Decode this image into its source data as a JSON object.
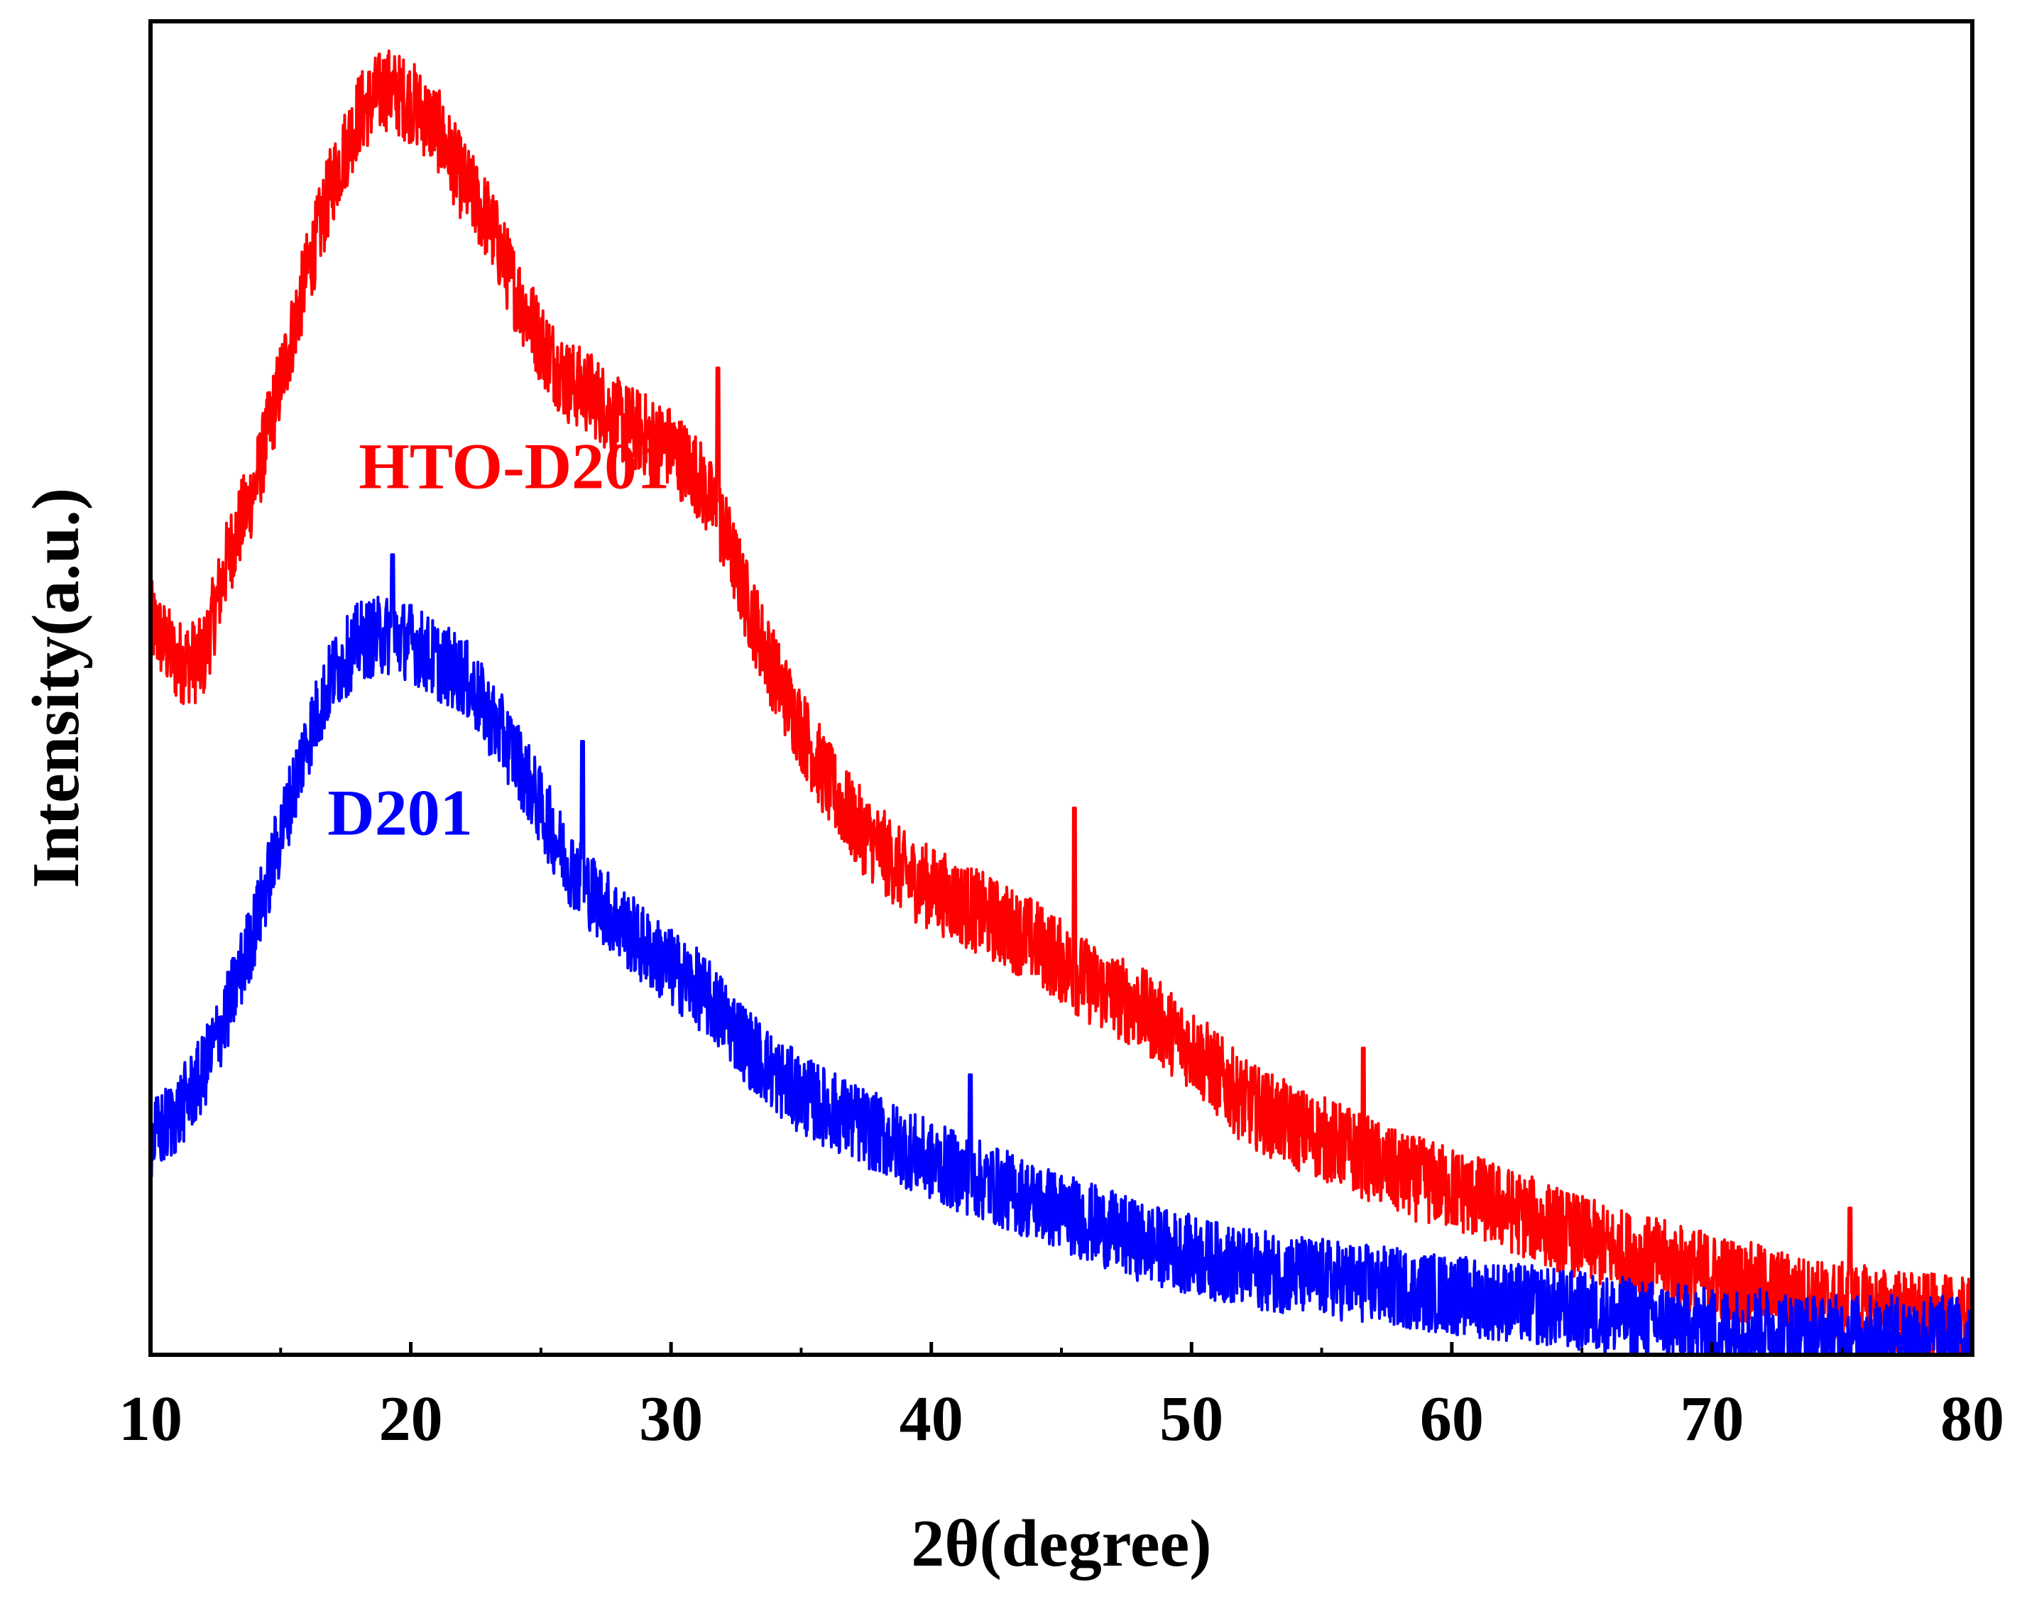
{
  "chart_data": {
    "type": "line",
    "title": "",
    "xlabel": "2θ(degree)",
    "ylabel": "Intensity(a.u.)",
    "xlim": [
      10,
      80
    ],
    "ylim": [
      0,
      100
    ],
    "x_ticks": [
      10,
      20,
      30,
      40,
      50,
      60,
      70,
      80
    ],
    "x_tick_labels": [
      "10",
      "20",
      "30",
      "40",
      "50",
      "60",
      "70",
      "80"
    ],
    "y_ticks_shown": false,
    "grid": false,
    "legend": "none (series are labeled inline)",
    "series": [
      {
        "name": "HTO-D201",
        "color": "#ff0000",
        "label_at": [
          18,
          65
        ],
        "anchor_x": [
          10,
          11,
          12,
          13,
          14,
          15,
          16,
          17,
          18,
          19,
          20,
          21,
          22,
          23,
          24,
          25,
          26,
          27,
          28,
          29,
          30,
          31,
          32,
          33,
          34,
          35,
          36,
          37,
          38,
          39,
          40,
          42,
          44,
          46,
          48,
          50,
          52,
          54,
          56,
          58,
          60,
          62,
          64,
          66,
          68,
          70,
          72,
          74,
          76,
          78,
          80
        ],
        "anchor_y": [
          55,
          52,
          52,
          60,
          65,
          73,
          81,
          88,
          93,
          95,
          94,
          92,
          88,
          85,
          80,
          76,
          73,
          72,
          70,
          69,
          68,
          66,
          62,
          56,
          51,
          47,
          43,
          40,
          38,
          36,
          35,
          33,
          31,
          28,
          26,
          23,
          19,
          17,
          15.5,
          13.5,
          12.5,
          11,
          9.5,
          8,
          7,
          6,
          5,
          4,
          3.5,
          3,
          2.5
        ],
        "noise_amplitude": 3.2,
        "spikes": [
          [
            31.8,
            74
          ],
          [
            45.5,
            41
          ],
          [
            56.6,
            23
          ],
          [
            75.3,
            11
          ]
        ]
      },
      {
        "name": "D201",
        "color": "#0000ff",
        "label_at": [
          16.8,
          39
        ],
        "anchor_x": [
          10,
          11,
          12,
          13,
          14,
          15,
          16,
          17,
          18,
          19,
          20,
          21,
          22,
          23,
          24,
          25,
          26,
          27,
          28,
          29,
          30,
          31,
          32,
          33,
          34,
          35,
          36,
          37,
          38,
          39,
          40,
          42,
          44,
          46,
          48,
          50,
          52,
          54,
          56,
          58,
          60,
          62,
          64,
          66,
          68,
          70,
          72,
          74,
          76,
          78,
          80
        ],
        "anchor_y": [
          16,
          18,
          21,
          26,
          32,
          39,
          46,
          51,
          53.5,
          54,
          53.5,
          52,
          51,
          48,
          45,
          41,
          37,
          34.5,
          32.5,
          30.5,
          29,
          27.5,
          25.5,
          23,
          21,
          19.5,
          18.5,
          17.5,
          16.5,
          15.5,
          14.5,
          13,
          11.5,
          10,
          8.5,
          7.5,
          6.5,
          6,
          5.5,
          5,
          4.5,
          4,
          3.5,
          3,
          2.5,
          2,
          2,
          1.5,
          1.5,
          1.5,
          1.5
        ],
        "noise_amplitude": 3.0,
        "spikes": [
          [
            19.3,
            60
          ],
          [
            25,
            33
          ],
          [
            26.6,
            46
          ],
          [
            41.5,
            21
          ]
        ]
      }
    ]
  }
}
